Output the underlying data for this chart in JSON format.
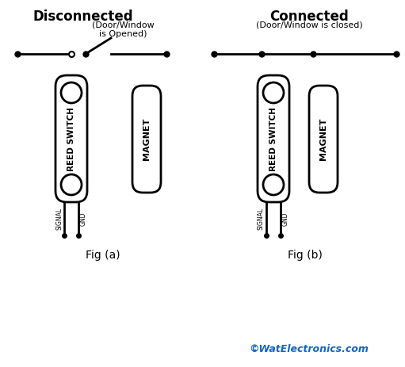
{
  "bg_color": "#ffffff",
  "line_color": "#000000",
  "watermark_color": "#1565c0",
  "watermark": "©WatElectronics.com",
  "fig_a_label": "Fig (a)",
  "fig_b_label": "Fig (b)",
  "disconnected_title": "Disconnected",
  "disconnected_sub": "(Door/Window\nis Opened)",
  "connected_title": "Connected",
  "connected_sub": "(Door/Window is closed)",
  "reed_switch_label": "REED SWITCH",
  "magnet_label": "MAGNET",
  "signal_label": "SIGNAL",
  "gnd_label": "GND",
  "fig_width": 5.11,
  "fig_height": 4.63,
  "dpi": 100
}
